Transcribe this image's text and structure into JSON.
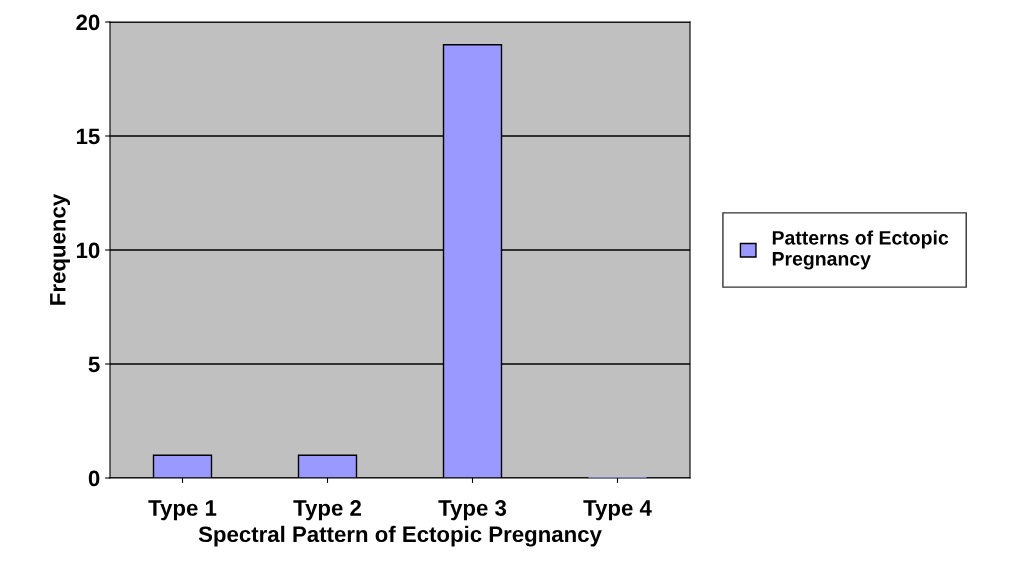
{
  "chart_data": {
    "type": "bar",
    "xlabel": "Spectral Pattern of Ectopic Pregnancy",
    "ylabel": "Frequency",
    "categories": [
      "Type 1",
      "Type 2",
      "Type 3",
      "Type 4"
    ],
    "series": [
      {
        "name": "Patterns of Ectopic Pregnancy",
        "color": "#9999ff",
        "values": [
          1,
          1,
          19,
          0
        ]
      }
    ],
    "ylim": [
      0,
      20
    ],
    "yticks": [
      0,
      5,
      10,
      15,
      20
    ],
    "grid": "y",
    "legend": "right"
  }
}
